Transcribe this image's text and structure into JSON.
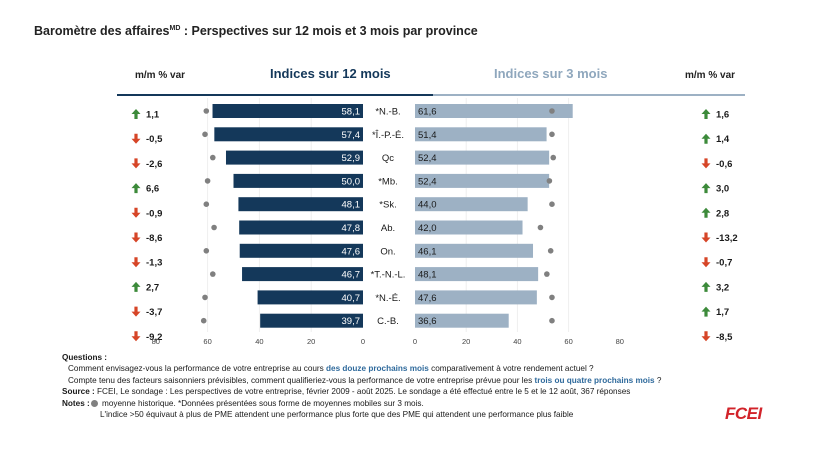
{
  "title_main": "Baromètre des affaires",
  "title_sup": "MD",
  "title_rest": " : Perspectives sur 12 mois et 3 mois par province",
  "headers": {
    "left_var": "m/m % var",
    "right_var": "m/m % var",
    "panel_12": "Indices sur 12 mois",
    "panel_3": "Indices sur 3 mois"
  },
  "chart_data": {
    "type": "bar",
    "categories": [
      "*N.-B.",
      "*Î.-P.-É.",
      "Qc",
      "*Mb.",
      "*Sk.",
      "Ab.",
      "On.",
      "*T.-N.-L.",
      "*N.-É.",
      "C.-B."
    ],
    "series": [
      {
        "name": "Indices sur 12 mois",
        "values": [
          58.1,
          57.4,
          52.9,
          50.0,
          48.1,
          47.8,
          47.6,
          46.7,
          40.7,
          39.7
        ],
        "labels": [
          "58,1",
          "57,4",
          "52,9",
          "50,0",
          "48,1",
          "47,8",
          "47,6",
          "46,7",
          "40,7",
          "39,7"
        ],
        "historical_average": [
          60.5,
          61.0,
          58.0,
          60.0,
          60.5,
          57.5,
          60.5,
          58.0,
          61.0,
          61.5
        ],
        "mm_var": [
          "1,1",
          "-0,5",
          "-2,6",
          "6,6",
          "-0,9",
          "-8,6",
          "-1,3",
          "2,7",
          "-3,7",
          "-9,2"
        ],
        "mm_direction": [
          "up",
          "down",
          "down",
          "up",
          "down",
          "down",
          "down",
          "up",
          "down",
          "down"
        ],
        "axis_ticks": [
          "80",
          "60",
          "40",
          "20",
          "0"
        ],
        "xlim": [
          80,
          0
        ]
      },
      {
        "name": "Indices sur 3 mois",
        "values": [
          61.6,
          51.4,
          52.4,
          52.4,
          44.0,
          42.0,
          46.1,
          48.1,
          47.6,
          36.6
        ],
        "labels": [
          "61,6",
          "51,4",
          "52,4",
          "52,4",
          "44,0",
          "42,0",
          "46,1",
          "48,1",
          "47,6",
          "36,6"
        ],
        "historical_average": [
          53.5,
          53.5,
          54.0,
          52.5,
          53.5,
          49.0,
          53.0,
          51.5,
          53.5,
          53.5
        ],
        "mm_var": [
          "1,6",
          "1,4",
          "-0,6",
          "3,0",
          "2,8",
          "-13,2",
          "-0,7",
          "3,2",
          "1,7",
          "-8,5"
        ],
        "mm_direction": [
          "up",
          "up",
          "down",
          "up",
          "up",
          "down",
          "down",
          "up",
          "up",
          "down"
        ],
        "axis_ticks": [
          "0",
          "20",
          "40",
          "60",
          "80"
        ],
        "xlim": [
          0,
          80
        ]
      }
    ],
    "colors": {
      "bar_12": "#14385a",
      "bar_3": "#9db1c4",
      "up": "#3c8a3a",
      "down": "#d64527",
      "avg_dot": "#808080"
    }
  },
  "notes": {
    "questions_label": "Questions :",
    "q1_pre": "Comment envisagez-vous la performance de votre entreprise au cours ",
    "q1_hl": "des douze prochains mois",
    "q1_post": " comparativement à votre rendement actuel ?",
    "q2_pre": "Compte tenu des facteurs saisonniers prévisibles, comment qualifieriez-vous la performance  de votre entreprise prévue pour les ",
    "q2_hl": "trois ou quatre prochains mois",
    "q2_post": " ?",
    "source_label": "Source :",
    "source_text": " FCEI, Le sondage : Les perspectives de votre entreprise, février 2009 - août 2025. Le sondage a été effectué entre le 5 et le 12 août, 367 réponses",
    "notes_label": "Notes :",
    "notes_text": " moyenne historique.  *Données présentées sous forme de moyennes mobiles sur 3 mois.",
    "notes_line2": "L'indice >50 équivaut à plus de PME attendent une performance plus forte que des PME qui attendent une performance plus faible"
  },
  "logo": "FCEI"
}
